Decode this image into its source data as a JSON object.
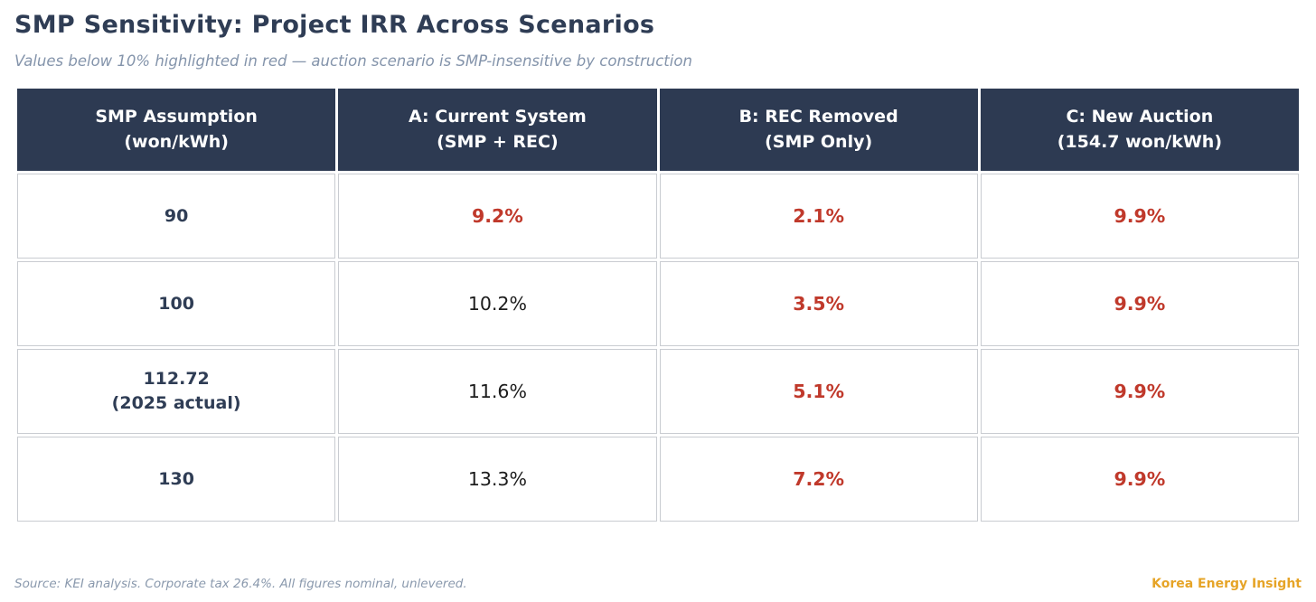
{
  "page": {
    "title": "SMP Sensitivity: Project IRR Across Scenarios",
    "subtitle": "Values below 10% highlighted in red — auction scenario is SMP-insensitive by construction",
    "footer_source": "Source: KEI analysis. Corporate tax 26.4%. All figures nominal, unlevered.",
    "brand": "Korea Energy Insight"
  },
  "colors": {
    "title_navy": "#2f3d55",
    "header_bg": "#2d3a52",
    "highlight_red": "#c0392b",
    "auction_cream": "#faf1de",
    "row_label_gray": "#edeff3",
    "muted_blue_gray": "#8494ab",
    "brand_gold": "#e6a427"
  },
  "table": {
    "headers": [
      {
        "line1": "SMP Assumption",
        "line2": "(won/kWh)"
      },
      {
        "line1": "A: Current System",
        "line2": "(SMP + REC)"
      },
      {
        "line1": "B: REC Removed",
        "line2": "(SMP Only)"
      },
      {
        "line1": "C: New Auction",
        "line2": "(154.7 won/kWh)"
      }
    ],
    "rows": [
      {
        "label": "90",
        "a": "9.2%",
        "b": "2.1%",
        "c": "9.9%",
        "a_red": true,
        "b_red": true,
        "c_red": true
      },
      {
        "label": "100",
        "a": "10.2%",
        "b": "3.5%",
        "c": "9.9%",
        "a_red": false,
        "b_red": true,
        "c_red": true
      },
      {
        "label": "112.72",
        "label_note": "(2025 actual)",
        "a": "11.6%",
        "b": "5.1%",
        "c": "9.9%",
        "a_red": false,
        "b_red": true,
        "c_red": true
      },
      {
        "label": "130",
        "a": "13.3%",
        "b": "7.2%",
        "c": "9.9%",
        "a_red": false,
        "b_red": true,
        "c_red": true
      }
    ]
  },
  "chart_data": {
    "type": "table",
    "title": "SMP Sensitivity: Project IRR Across Scenarios",
    "columns": [
      "SMP Assumption (won/kWh)",
      "A: Current System (SMP + REC)",
      "B: REC Removed (SMP Only)",
      "C: New Auction (154.7 won/kWh)"
    ],
    "rows": [
      [
        "90",
        "9.2%",
        "2.1%",
        "9.9%"
      ],
      [
        "100",
        "10.2%",
        "3.5%",
        "9.9%"
      ],
      [
        "112.72 (2025 actual)",
        "11.6%",
        "5.1%",
        "9.9%"
      ],
      [
        "130",
        "13.3%",
        "7.2%",
        "9.9%"
      ]
    ],
    "red_highlighted_cells": [
      "9.2%",
      "2.1%",
      "3.5%",
      "5.1%",
      "7.2%",
      "9.9% (all rows, column C)"
    ],
    "layout_hints": "Column C cells have cream background; first column light gray; header dark navy"
  }
}
